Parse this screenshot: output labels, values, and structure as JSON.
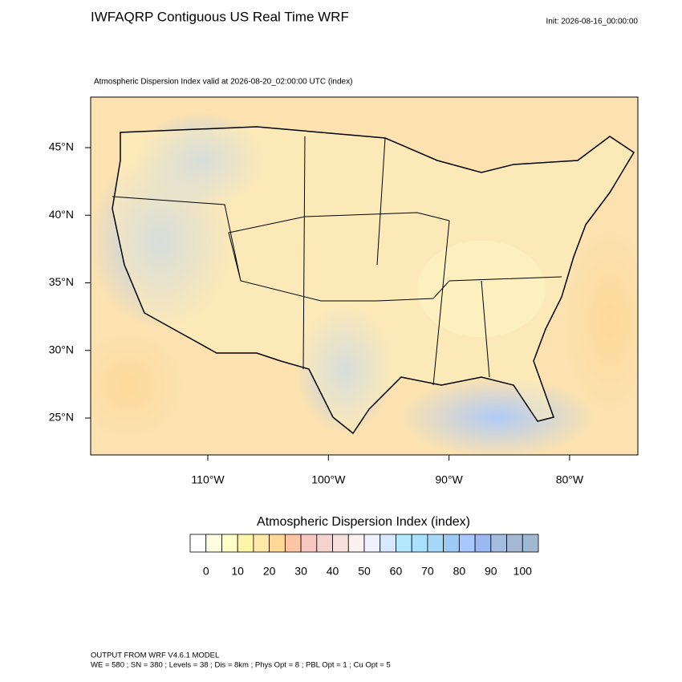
{
  "header": {
    "title": "IWFAQRP Contiguous US Real Time WRF",
    "init": "Init: 2026-08-16_00:00:00"
  },
  "map": {
    "subtitle": "Atmospheric Dispersion Index valid at 2026-08-20_02:00:00 UTC   (index)",
    "lat_ticks": [
      {
        "value": 45,
        "label": "45°N"
      },
      {
        "value": 40,
        "label": "40°N"
      },
      {
        "value": 35,
        "label": "35°N"
      },
      {
        "value": 30,
        "label": "30°N"
      },
      {
        "value": 25,
        "label": "25°N"
      }
    ],
    "lon_ticks": [
      {
        "value": -110,
        "label": "110°W"
      },
      {
        "value": -100,
        "label": "100°W"
      },
      {
        "value": -90,
        "label": "90°W"
      },
      {
        "value": -80,
        "label": "80°W"
      }
    ]
  },
  "colorbar": {
    "title": "Atmospheric Dispersion Index  (index)",
    "labels": [
      0,
      10,
      20,
      30,
      40,
      50,
      60,
      70,
      80,
      90,
      100
    ],
    "colors": [
      "#ffffff",
      "#fffde0",
      "#ffffc8",
      "#fff5a8",
      "#ffe8a8",
      "#ffd898",
      "#fbc4a4",
      "#f6c8c0",
      "#f4d2ce",
      "#f8e0dc",
      "#fdf0f0",
      "#eef2ff",
      "#d8e8ff",
      "#b4e8ff",
      "#a8e0ff",
      "#a8d8f8",
      "#9ccaf4",
      "#a8c8ff",
      "#9cb8f0",
      "#a4bce0",
      "#a4b8d4",
      "#a0b8d0"
    ]
  },
  "footer": {
    "line1": "OUTPUT FROM WRF V4.6.1 MODEL",
    "line2": "WE = 580 ; SN = 380 ; Levels = 38 ; Dis = 8km ; Phys Opt = 8 ; PBL Opt = 1 ; Cu Opt = 5"
  }
}
